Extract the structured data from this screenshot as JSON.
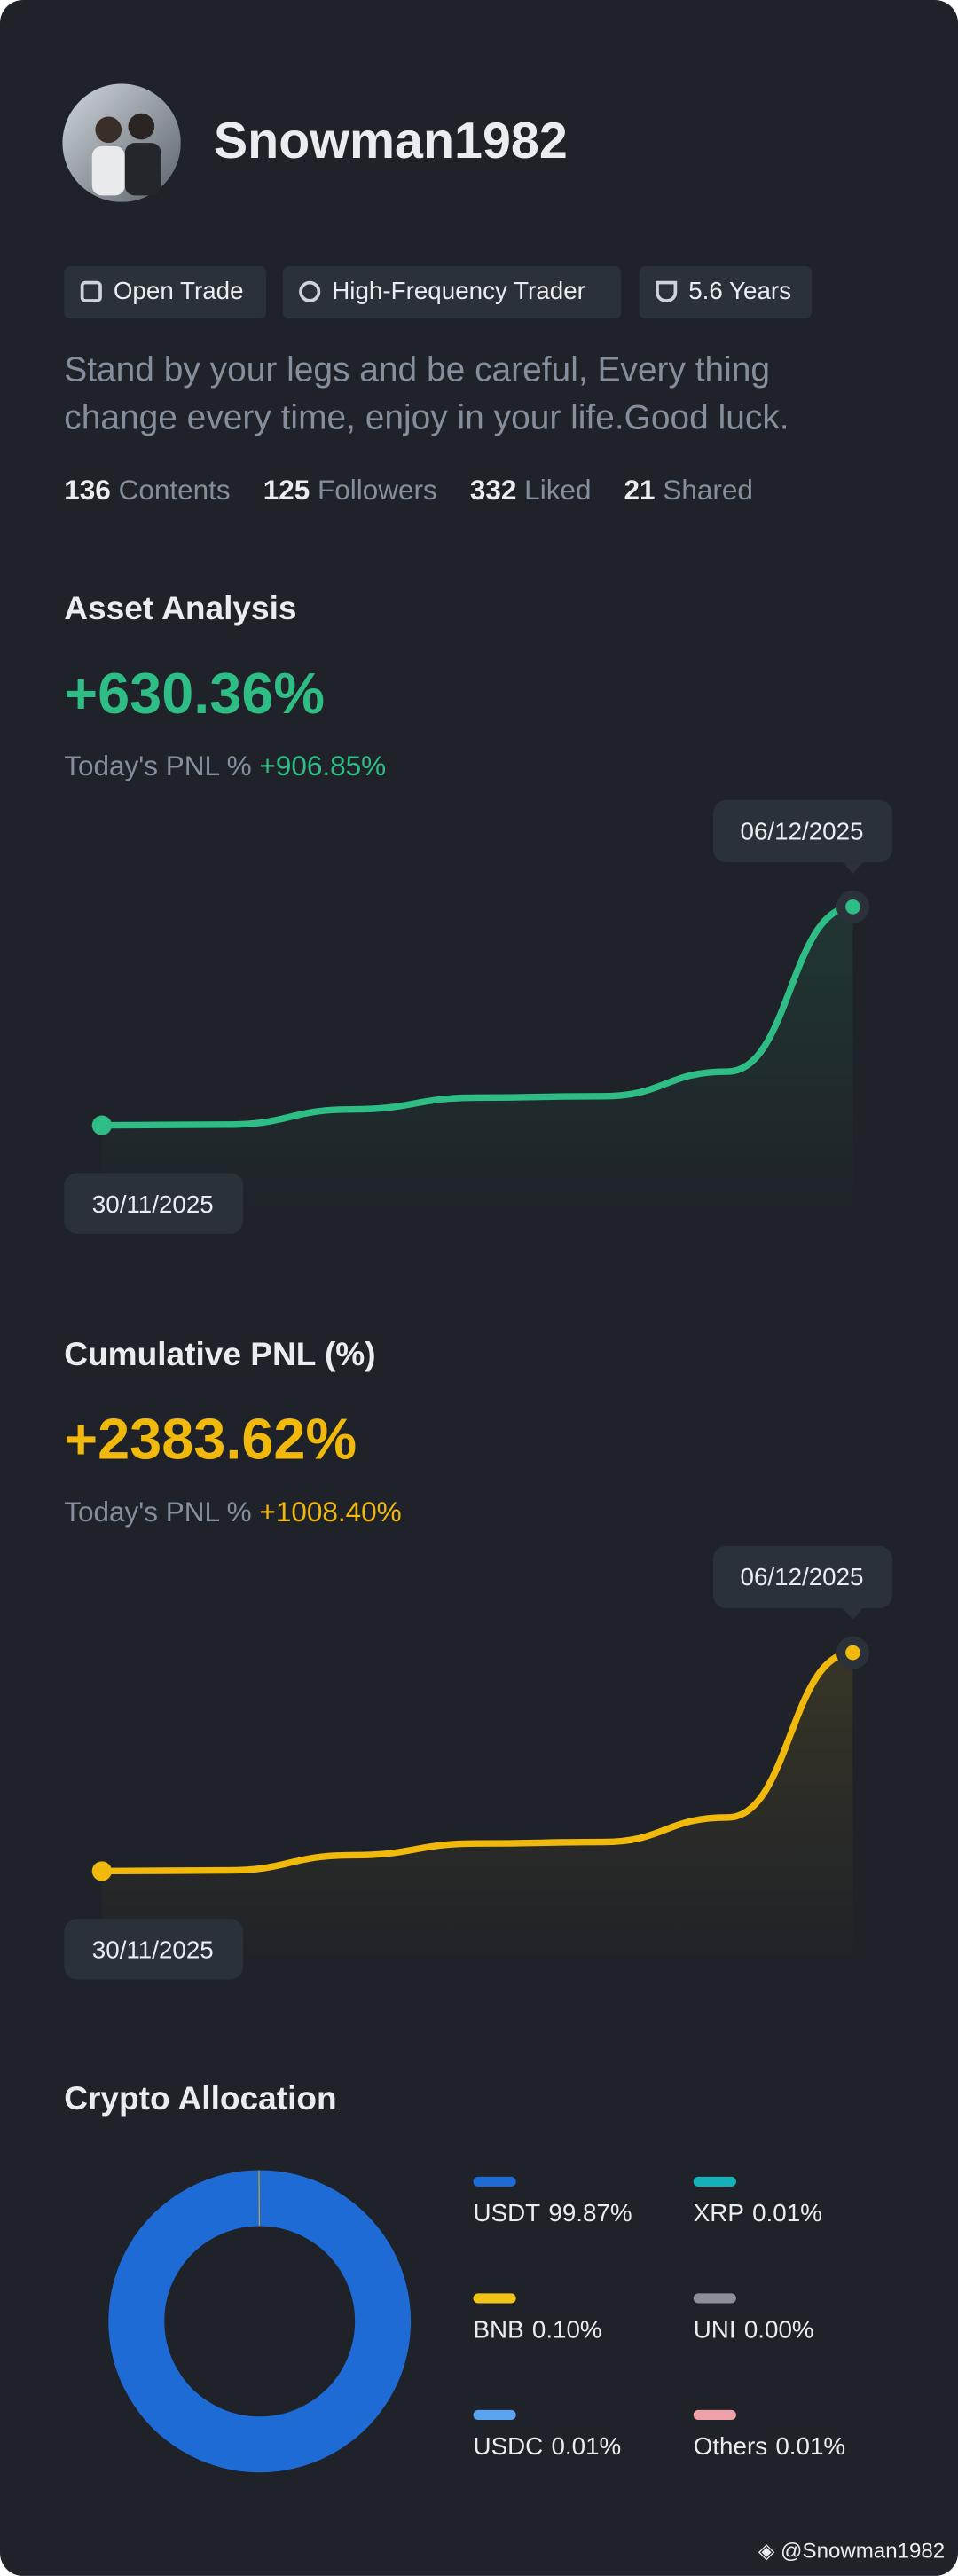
{
  "profile": {
    "username": "Snowman1982",
    "tags": [
      "Open Trade",
      "High-Frequency Trader",
      "5.6 Years"
    ],
    "bio": "Stand by your legs and be careful, Every thing change every time, enjoy in your life.Good luck.",
    "stats": [
      {
        "value": 136,
        "label": "Contents"
      },
      {
        "value": 125,
        "label": "Followers"
      },
      {
        "value": 332,
        "label": "Liked"
      },
      {
        "value": 21,
        "label": "Shared"
      }
    ]
  },
  "chart_data": [
    {
      "type": "line",
      "title": "Asset Analysis",
      "headline": "+630.36%",
      "subtitle": "Today's PNL %",
      "subtitle_value": "+906.85%",
      "categories": [
        "30/11/2025",
        null,
        null,
        null,
        null,
        null,
        "06/12/2025"
      ],
      "values": [
        0,
        2,
        46,
        80,
        84,
        155,
        630.36
      ],
      "color": "#2ebd85",
      "ylim": [
        0,
        630.36
      ]
    },
    {
      "type": "line",
      "title": "Cumulative PNL (%)",
      "headline": "+2383.62%",
      "subtitle": "Today's PNL %",
      "subtitle_value": "+1008.40%",
      "categories": [
        "30/11/2025",
        null,
        null,
        null,
        null,
        null,
        "06/12/2025"
      ],
      "values": [
        0,
        8,
        174,
        302,
        318,
        586,
        2383.62
      ],
      "color": "#f0b90b",
      "ylim": [
        0,
        2383.62
      ]
    },
    {
      "type": "pie",
      "title": "Crypto Allocation",
      "donut": true,
      "categories": [
        "USDT",
        "XRP",
        "BNB",
        "UNI",
        "USDC",
        "Others"
      ],
      "values": [
        99.87,
        0.01,
        0.1,
        0.0,
        0.01,
        0.01
      ],
      "value_labels": [
        "99.87%",
        "0.01%",
        "0.10%",
        "0.00%",
        "0.01%",
        "0.01%"
      ],
      "colors": [
        "#1e6bd6",
        "#16b1b8",
        "#f0c419",
        "#8a8f98",
        "#5aa3f0",
        "#f0a0a8"
      ]
    }
  ],
  "watermark": "@Snowman1982"
}
